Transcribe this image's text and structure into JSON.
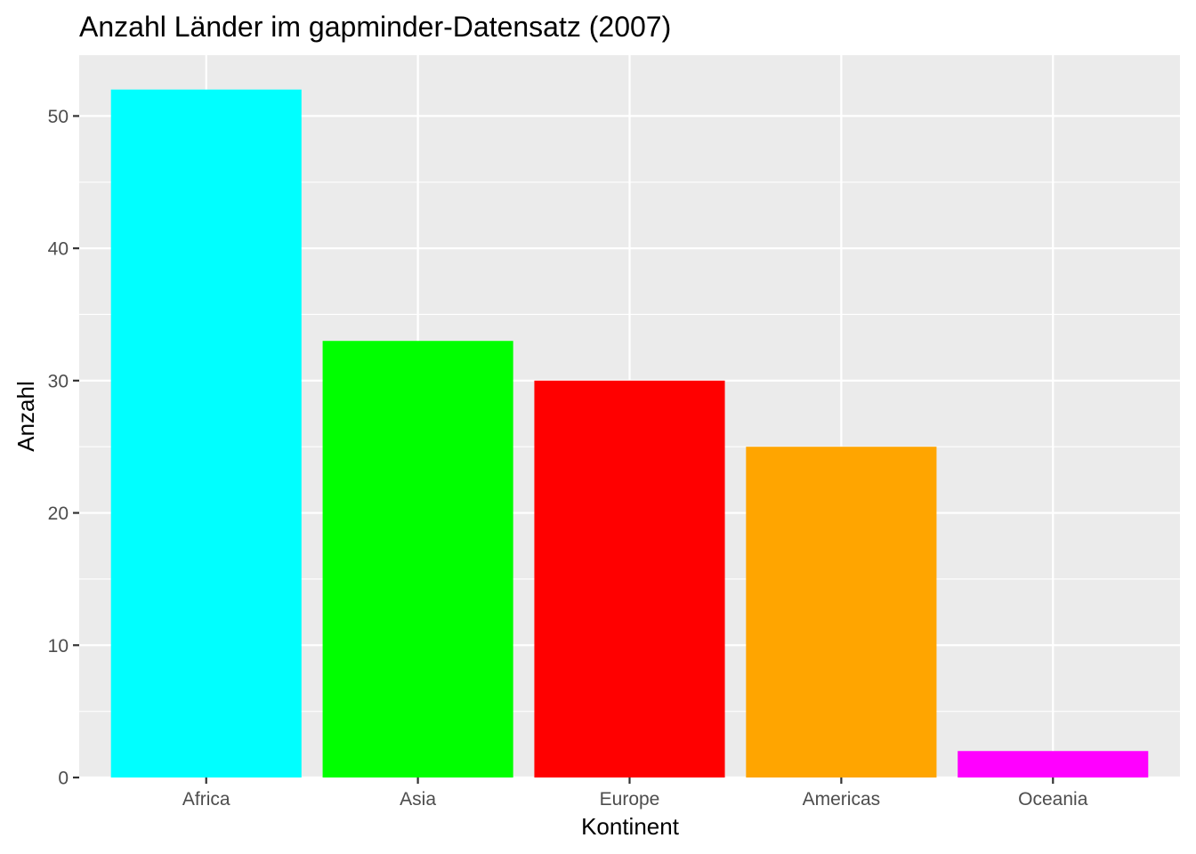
{
  "chart_data": {
    "type": "bar",
    "title": "Anzahl Länder im gapminder-Datensatz (2007)",
    "xlabel": "Kontinent",
    "ylabel": "Anzahl",
    "categories": [
      "Africa",
      "Asia",
      "Europe",
      "Americas",
      "Oceania"
    ],
    "values": [
      52,
      33,
      30,
      25,
      2
    ],
    "colors": [
      "#00FFFF",
      "#00FF00",
      "#FF0000",
      "#FFA500",
      "#FF00FF"
    ],
    "ylim": [
      0,
      54.6
    ],
    "yticks": [
      0,
      10,
      20,
      30,
      40,
      50
    ],
    "grid": true,
    "panel_background": "#EBEBEB",
    "grid_color": "#FFFFFF",
    "legend": "none"
  }
}
